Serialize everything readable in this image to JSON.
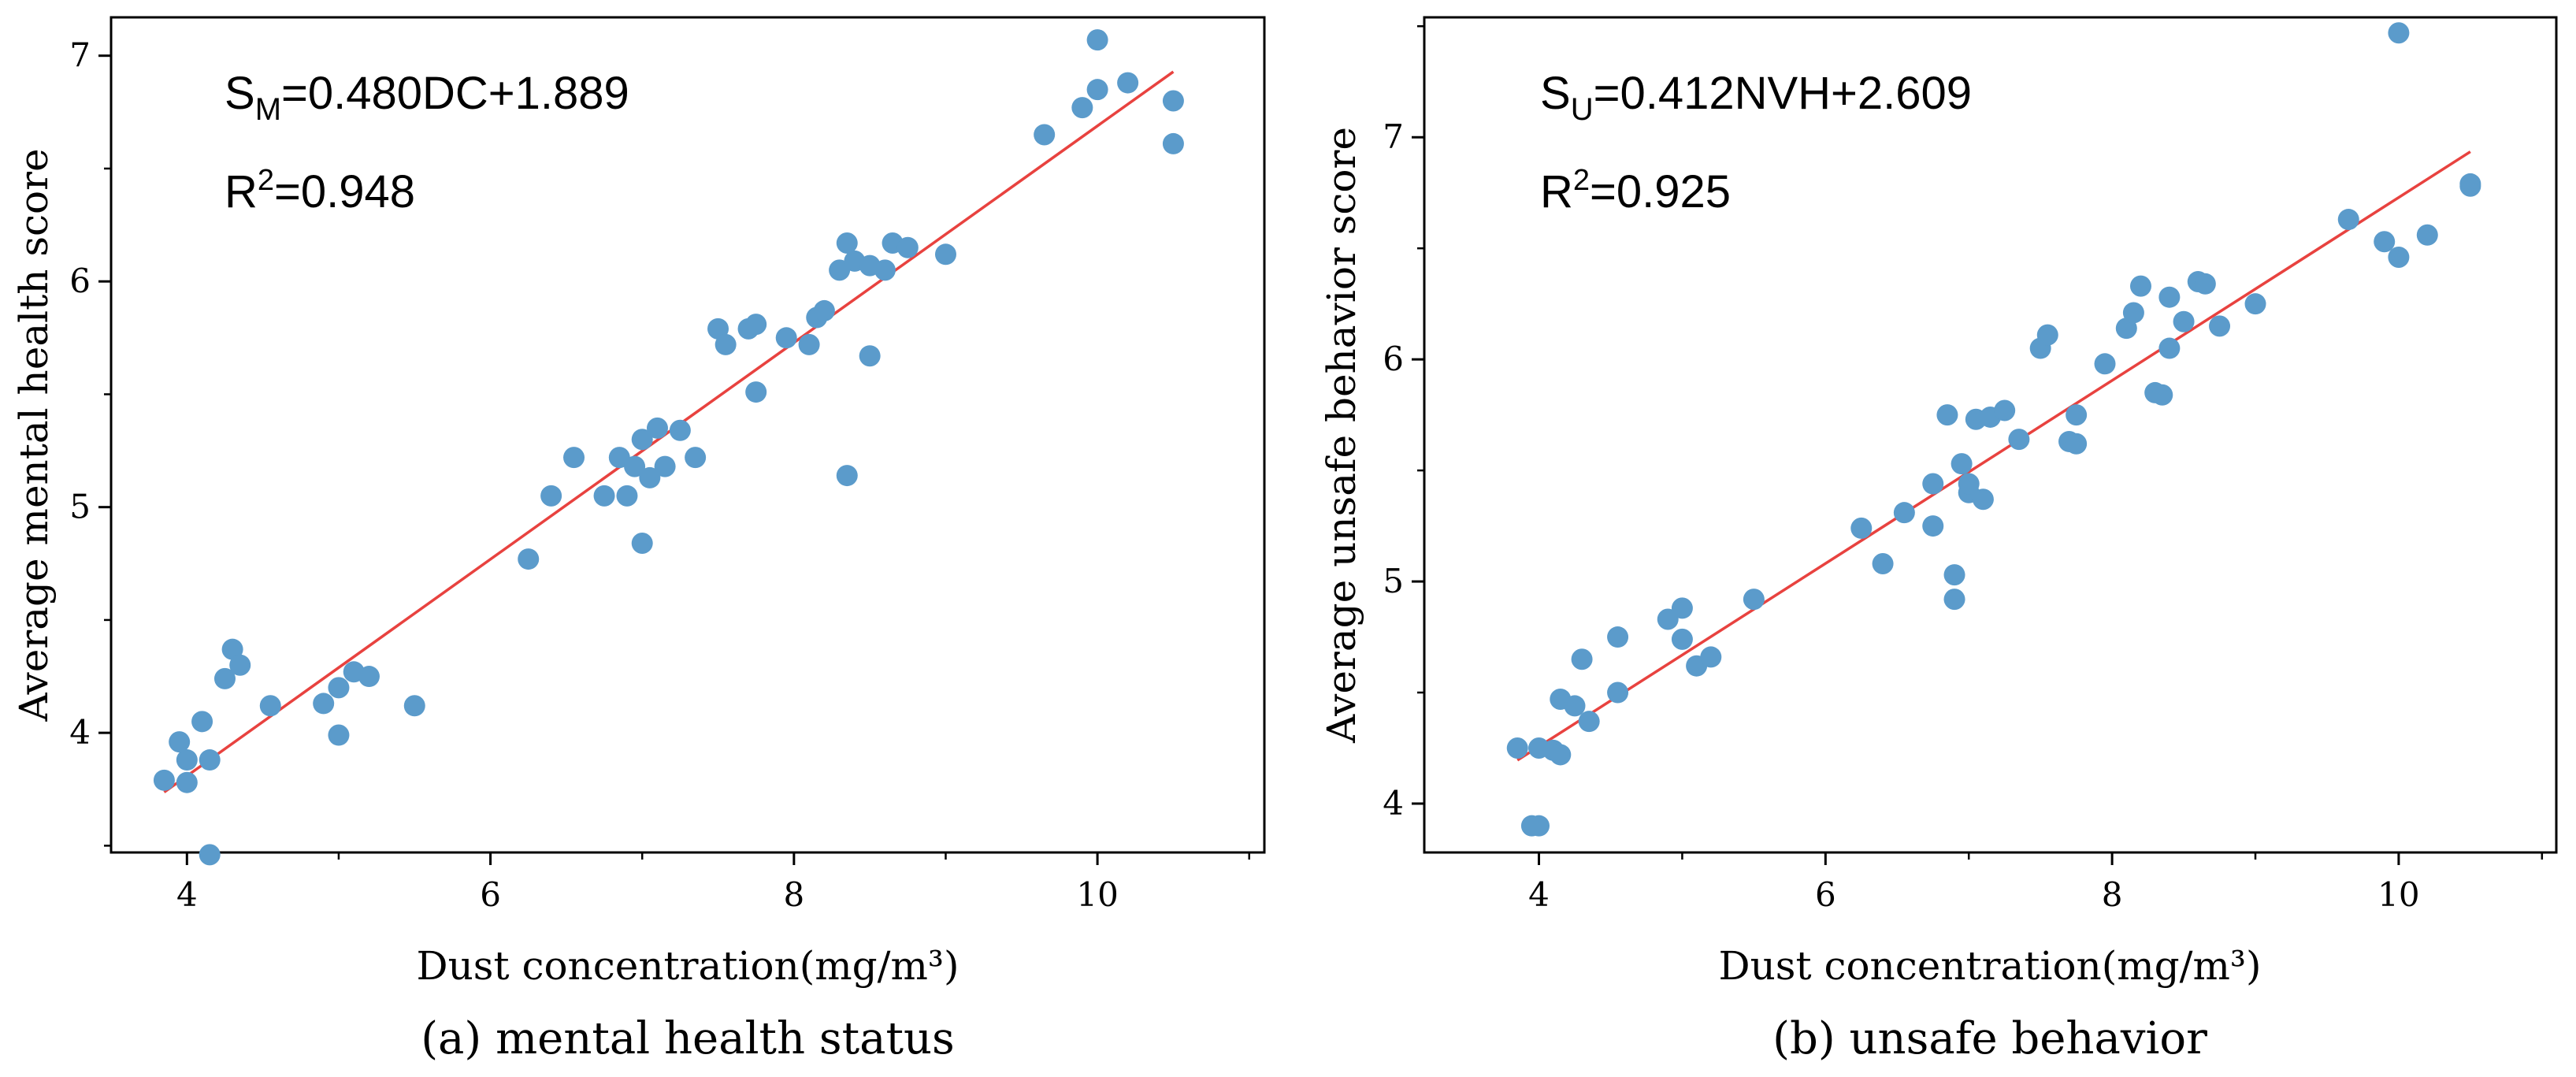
{
  "chart_data": [
    {
      "id": "a",
      "type": "scatter",
      "xlabel": "Dust concentration(mg/m³)",
      "ylabel": "Average mental health score",
      "xlim": [
        3.5,
        11.1
      ],
      "ylim": [
        3.47,
        7.17
      ],
      "xticks": [
        4,
        6,
        8,
        10
      ],
      "xtick_labels": [
        "4",
        "6",
        "8",
        "10"
      ],
      "yticks": [
        4,
        5,
        6,
        7
      ],
      "ytick_labels": [
        "4",
        "5",
        "6",
        "7"
      ],
      "equation": {
        "prefix": "S",
        "sub": "M",
        "rest": "=0.480DC+1.889"
      },
      "r2": {
        "base": "R",
        "sup": "2",
        "rest": "=0.948"
      },
      "fit": {
        "slope": 0.48,
        "intercept": 1.889,
        "x_range": [
          3.85,
          10.5
        ]
      },
      "caption": "(a) mental health status",
      "points": [
        [
          3.85,
          3.79
        ],
        [
          3.95,
          3.96
        ],
        [
          4.0,
          3.78
        ],
        [
          4.0,
          3.88
        ],
        [
          4.1,
          4.05
        ],
        [
          4.15,
          3.88
        ],
        [
          4.15,
          3.46
        ],
        [
          4.25,
          4.24
        ],
        [
          4.3,
          4.37
        ],
        [
          4.35,
          4.3
        ],
        [
          4.55,
          4.12
        ],
        [
          4.9,
          4.13
        ],
        [
          5.0,
          4.2
        ],
        [
          5.0,
          3.99
        ],
        [
          5.1,
          4.27
        ],
        [
          5.2,
          4.25
        ],
        [
          5.5,
          4.12
        ],
        [
          6.25,
          4.77
        ],
        [
          6.4,
          5.05
        ],
        [
          6.55,
          5.22
        ],
        [
          6.75,
          5.05
        ],
        [
          6.85,
          5.22
        ],
        [
          6.9,
          5.05
        ],
        [
          6.95,
          5.18
        ],
        [
          7.0,
          5.3
        ],
        [
          7.0,
          4.84
        ],
        [
          7.05,
          5.13
        ],
        [
          7.1,
          5.35
        ],
        [
          7.15,
          5.18
        ],
        [
          7.25,
          5.34
        ],
        [
          7.35,
          5.22
        ],
        [
          7.5,
          5.79
        ],
        [
          7.55,
          5.72
        ],
        [
          7.7,
          5.79
        ],
        [
          7.75,
          5.81
        ],
        [
          7.75,
          5.51
        ],
        [
          7.95,
          5.75
        ],
        [
          8.1,
          5.72
        ],
        [
          8.15,
          5.84
        ],
        [
          8.2,
          5.87
        ],
        [
          8.3,
          6.05
        ],
        [
          8.35,
          6.17
        ],
        [
          8.35,
          5.14
        ],
        [
          8.4,
          6.09
        ],
        [
          8.5,
          6.07
        ],
        [
          8.5,
          5.67
        ],
        [
          8.6,
          6.05
        ],
        [
          8.65,
          6.17
        ],
        [
          8.75,
          6.15
        ],
        [
          9.0,
          6.12
        ],
        [
          9.65,
          6.65
        ],
        [
          9.9,
          6.77
        ],
        [
          10.0,
          6.85
        ],
        [
          10.0,
          7.07
        ],
        [
          10.2,
          6.88
        ],
        [
          10.5,
          6.8
        ],
        [
          10.5,
          6.61
        ]
      ]
    },
    {
      "id": "b",
      "type": "scatter",
      "xlabel": "Dust concentration(mg/m³)",
      "ylabel": "Average unsafe behavior score",
      "xlim": [
        3.2,
        11.1
      ],
      "ylim": [
        3.78,
        7.54
      ],
      "xticks": [
        4,
        6,
        8,
        10
      ],
      "xtick_labels": [
        "4",
        "6",
        "8",
        "10"
      ],
      "yticks": [
        4,
        5,
        6,
        7
      ],
      "ytick_labels": [
        "4",
        "5",
        "6",
        "7"
      ],
      "equation": {
        "prefix": "S",
        "sub": "U",
        "rest": "=0.412NVH+2.609"
      },
      "r2": {
        "base": "R",
        "sup": "2",
        "rest": "=0.925"
      },
      "fit": {
        "slope": 0.412,
        "intercept": 2.609,
        "x_range": [
          3.85,
          10.5
        ]
      },
      "caption": "(b) unsafe behavior",
      "points": [
        [
          3.85,
          4.25
        ],
        [
          3.95,
          3.9
        ],
        [
          4.0,
          3.9
        ],
        [
          4.0,
          4.25
        ],
        [
          4.1,
          4.24
        ],
        [
          4.15,
          4.47
        ],
        [
          4.15,
          4.22
        ],
        [
          4.25,
          4.44
        ],
        [
          4.3,
          4.65
        ],
        [
          4.35,
          4.37
        ],
        [
          4.55,
          4.5
        ],
        [
          4.55,
          4.75
        ],
        [
          4.9,
          4.83
        ],
        [
          5.0,
          4.88
        ],
        [
          5.0,
          4.74
        ],
        [
          5.1,
          4.62
        ],
        [
          5.2,
          4.66
        ],
        [
          5.5,
          4.92
        ],
        [
          6.25,
          5.24
        ],
        [
          6.4,
          5.08
        ],
        [
          6.55,
          5.31
        ],
        [
          6.75,
          5.25
        ],
        [
          6.75,
          5.44
        ],
        [
          6.85,
          5.75
        ],
        [
          6.9,
          5.03
        ],
        [
          6.9,
          4.92
        ],
        [
          6.95,
          5.53
        ],
        [
          7.0,
          5.4
        ],
        [
          7.0,
          5.44
        ],
        [
          7.05,
          5.73
        ],
        [
          7.1,
          5.37
        ],
        [
          7.15,
          5.74
        ],
        [
          7.25,
          5.77
        ],
        [
          7.35,
          5.64
        ],
        [
          7.5,
          6.05
        ],
        [
          7.55,
          6.11
        ],
        [
          7.7,
          5.63
        ],
        [
          7.75,
          5.62
        ],
        [
          7.75,
          5.75
        ],
        [
          7.95,
          5.98
        ],
        [
          8.1,
          6.14
        ],
        [
          8.15,
          6.21
        ],
        [
          8.2,
          6.33
        ],
        [
          8.3,
          5.85
        ],
        [
          8.35,
          5.84
        ],
        [
          8.4,
          6.05
        ],
        [
          8.4,
          6.28
        ],
        [
          8.5,
          6.17
        ],
        [
          8.6,
          6.35
        ],
        [
          8.65,
          6.34
        ],
        [
          8.75,
          6.15
        ],
        [
          9.0,
          6.25
        ],
        [
          9.65,
          6.63
        ],
        [
          9.9,
          6.53
        ],
        [
          10.0,
          6.46
        ],
        [
          10.0,
          7.47
        ],
        [
          10.2,
          6.56
        ],
        [
          10.5,
          6.78
        ],
        [
          10.5,
          6.79
        ]
      ]
    }
  ]
}
